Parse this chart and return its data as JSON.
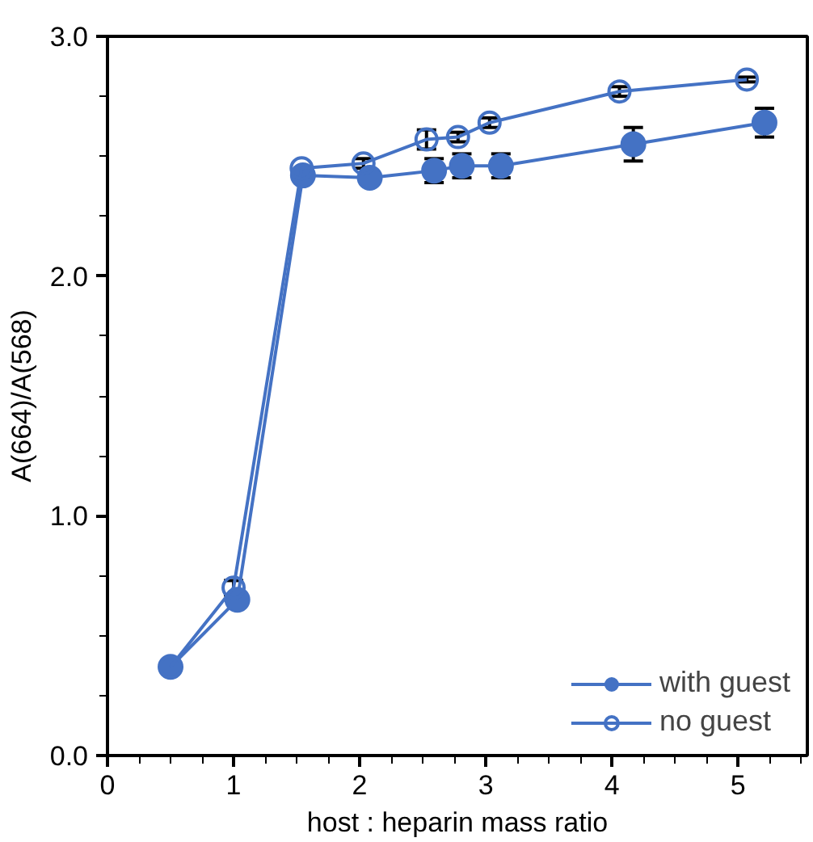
{
  "chart_data": {
    "type": "line",
    "xlabel": "host : heparin mass ratio",
    "ylabel": "A(664)/A(568)",
    "xlim": [
      0,
      5.55
    ],
    "ylim": [
      0,
      3
    ],
    "xticks": [
      0,
      1,
      2,
      3,
      4,
      5
    ],
    "yticks": [
      {
        "value": 0,
        "label": "0.0"
      },
      {
        "value": 1,
        "label": "1.0"
      },
      {
        "value": 2,
        "label": "2.0"
      },
      {
        "value": 3,
        "label": "3.0"
      }
    ],
    "grid": false,
    "legend": "bottom right",
    "line_style": "solid",
    "series": [
      {
        "name": "with guest",
        "color": "#4472c4",
        "marker": "circle",
        "x": [
          0.5,
          1.03,
          1.55,
          2.08,
          2.59,
          2.81,
          3.12,
          4.17,
          5.21
        ],
        "values": [
          0.37,
          0.65,
          2.42,
          2.41,
          2.44,
          2.46,
          2.46,
          2.55,
          2.64
        ],
        "errors": [
          null,
          null,
          null,
          null,
          0.05,
          0.05,
          0.05,
          0.07,
          0.06
        ]
      },
      {
        "name": "no guest",
        "color": "#4472c4",
        "marker": "open_circle",
        "x": [
          0.5,
          1.0,
          1.54,
          2.03,
          2.53,
          2.78,
          3.03,
          4.06,
          5.07
        ],
        "values": [
          0.37,
          0.7,
          2.45,
          2.47,
          2.57,
          2.58,
          2.64,
          2.77,
          2.82
        ],
        "errors": [
          null,
          0.03,
          null,
          0.02,
          0.04,
          0.02,
          0.02,
          0.02,
          0.01
        ]
      }
    ]
  }
}
